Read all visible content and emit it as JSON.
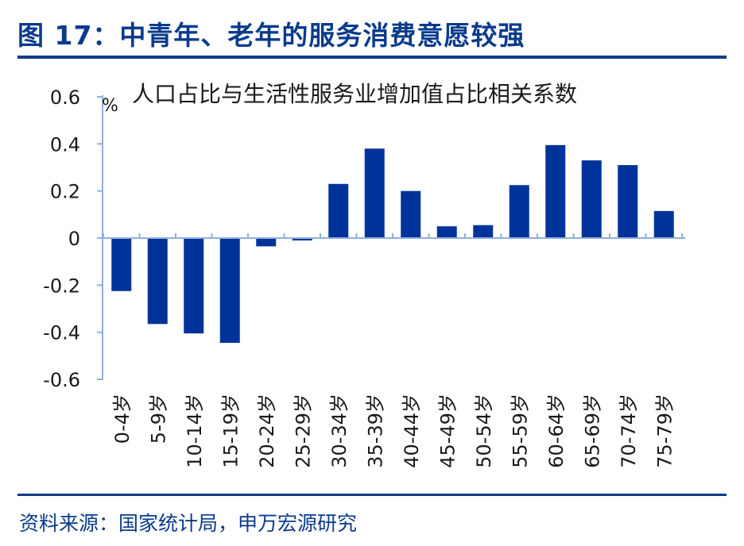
{
  "figure": {
    "title": "图 17：中青年、老年的服务消费意愿较强",
    "source": "资料来源：国家统计局，申万宏源研究"
  },
  "colors": {
    "bar": "#00339a",
    "title": "#0a3b8c",
    "axis": "#8fb0dc"
  },
  "chart_data": {
    "type": "bar",
    "title": "人口占比与生活性服务业增加值占比相关系数",
    "ylabel": "%",
    "xlabel": "",
    "ylim": [
      -0.6,
      0.6
    ],
    "yticks": [
      "0.6",
      "0.4",
      "0.2",
      "0",
      "-0.2",
      "-0.4",
      "-0.6"
    ],
    "grid": false,
    "categories": [
      "0-4岁",
      "5-9岁",
      "10-14岁",
      "15-19岁",
      "20-24岁",
      "25-29岁",
      "30-34岁",
      "35-39岁",
      "40-44岁",
      "45-49岁",
      "50-54岁",
      "55-59岁",
      "60-64岁",
      "65-69岁",
      "70-74岁",
      "75-79岁"
    ],
    "values": [
      -0.225,
      -0.365,
      -0.405,
      -0.445,
      -0.035,
      -0.01,
      0.23,
      0.38,
      0.2,
      0.05,
      0.055,
      0.225,
      0.395,
      0.33,
      0.31,
      0.115
    ]
  }
}
